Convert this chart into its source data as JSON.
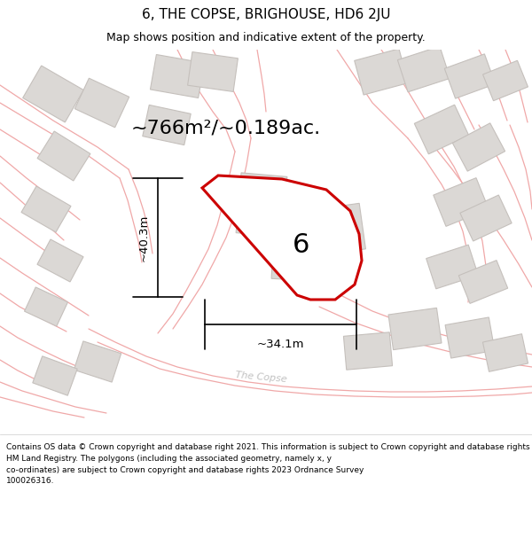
{
  "title": "6, THE COPSE, BRIGHOUSE, HD6 2JU",
  "subtitle": "Map shows position and indicative extent of the property.",
  "area_label": "~766m²/~0.189ac.",
  "plot_number": "6",
  "width_label": "~34.1m",
  "height_label": "~40.3m",
  "footer": "Contains OS data © Crown copyright and database right 2021. This information is subject to Crown copyright and database rights 2023 and is reproduced with the permission of\nHM Land Registry. The polygons (including the associated geometry, namely x, y\nco-ordinates) are subject to Crown copyright and database rights 2023 Ordnance Survey\n100026316.",
  "map_bg": "#f0eeeb",
  "plot_fill": "#ffffff",
  "plot_edge": "#cc0000",
  "road_color": "#f0a8a8",
  "building_fill": "#dbd8d5",
  "building_edge": "#c5c0bc",
  "title_bg": "#ffffff",
  "footer_bg": "#ffffff",
  "sep_color": "#cccccc",
  "title_fontsize": 11,
  "subtitle_fontsize": 9,
  "area_fontsize": 16,
  "plot_num_fontsize": 22,
  "dim_fontsize": 9.5,
  "footer_fontsize": 6.5
}
